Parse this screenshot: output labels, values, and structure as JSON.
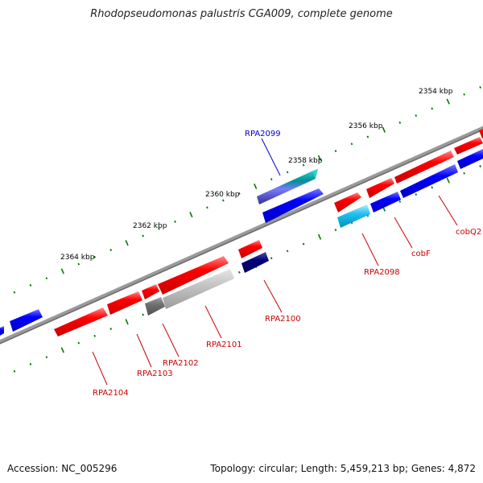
{
  "title": "Rhodopseudomonas palustris CGA009, complete genome",
  "footer": {
    "accession": "Accession: NC_005296",
    "topology": "Topology: circular; Length: 5,459,213 bp; Genes: 4,872"
  },
  "scale_labels": [
    "2354 kbp",
    "2356 kbp",
    "2358 kbp",
    "2360 kbp",
    "2362 kbp",
    "2364 kbp"
  ],
  "gene_labels": [
    "RPA2099",
    "RPA2098",
    "cobF",
    "cobQ2",
    "RPA2100",
    "RPA2101",
    "RPA2102",
    "RPA2103",
    "RPA2104"
  ],
  "colors": {
    "forward": "#ff0000",
    "reverse": "#0000ff",
    "backbone": "#777777",
    "ticks": "#007a00",
    "label_forward": "#cc0000",
    "label_reverse": "#0000cc"
  }
}
